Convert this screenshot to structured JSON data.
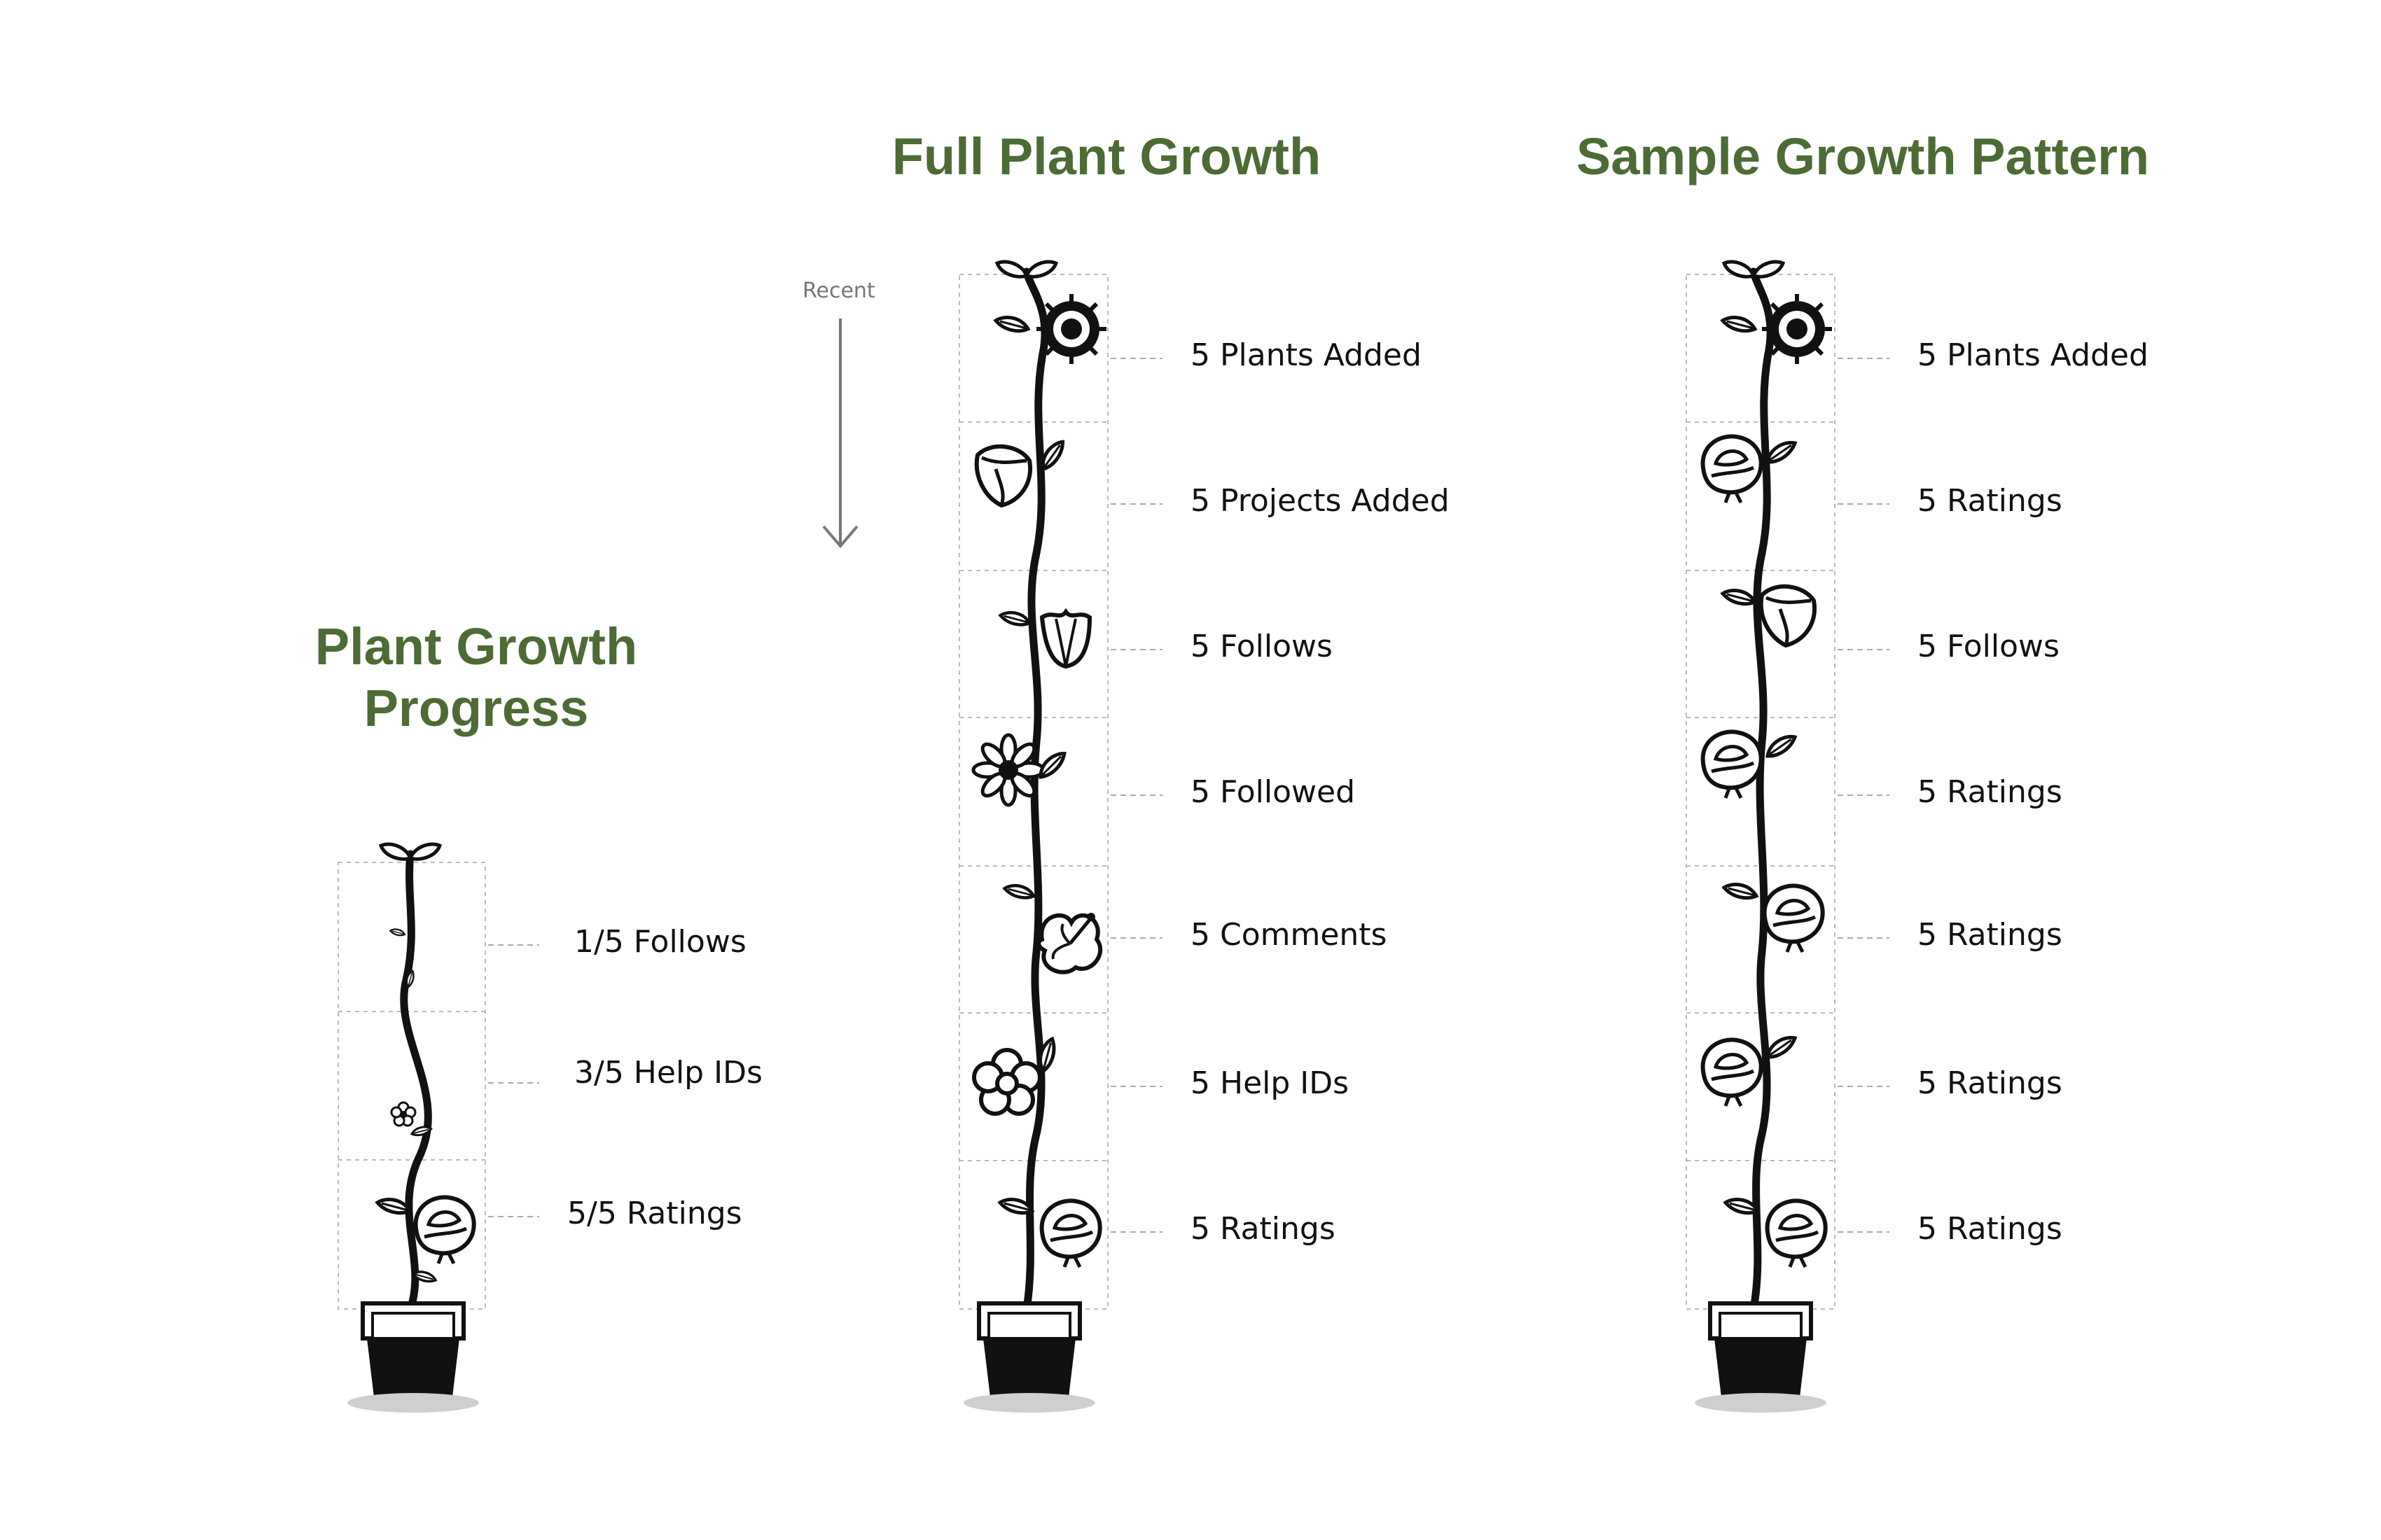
{
  "titles": {
    "progress_line1": "Plant Growth",
    "progress_line2": "Progress",
    "full": "Full Plant Growth",
    "sample": "Sample Growth Pattern"
  },
  "recent_label": "Recent",
  "colors": {
    "title": "#4d6b35",
    "ink": "#111111",
    "guide": "#bbbbbb"
  },
  "progress": {
    "items": [
      {
        "label": "1/5 Follows",
        "icon": "small-leaf-sprout-icon"
      },
      {
        "label": "3/5 Help IDs",
        "icon": "small-flower-icon"
      },
      {
        "label": "5/5 Ratings",
        "icon": "rose-icon"
      }
    ]
  },
  "full": {
    "items": [
      {
        "label": "5 Plants Added",
        "icon": "spiky-flower-icon"
      },
      {
        "label": "5 Projects Added",
        "icon": "lily-icon"
      },
      {
        "label": "5 Follows",
        "icon": "tulip-icon"
      },
      {
        "label": "5 Followed",
        "icon": "daisy-icon"
      },
      {
        "label": "5 Comments",
        "icon": "hibiscus-icon"
      },
      {
        "label": "5 Help IDs",
        "icon": "five-petal-flower-icon"
      },
      {
        "label": "5 Ratings",
        "icon": "rose-icon"
      }
    ]
  },
  "sample": {
    "items": [
      {
        "label": "5 Plants Added",
        "icon": "spiky-flower-icon"
      },
      {
        "label": "5 Ratings",
        "icon": "rose-icon"
      },
      {
        "label": "5 Follows",
        "icon": "lily-icon"
      },
      {
        "label": "5 Ratings",
        "icon": "rose-icon"
      },
      {
        "label": "5 Ratings",
        "icon": "rose-icon"
      },
      {
        "label": "5 Ratings",
        "icon": "rose-icon"
      },
      {
        "label": "5 Ratings",
        "icon": "rose-icon"
      }
    ]
  }
}
